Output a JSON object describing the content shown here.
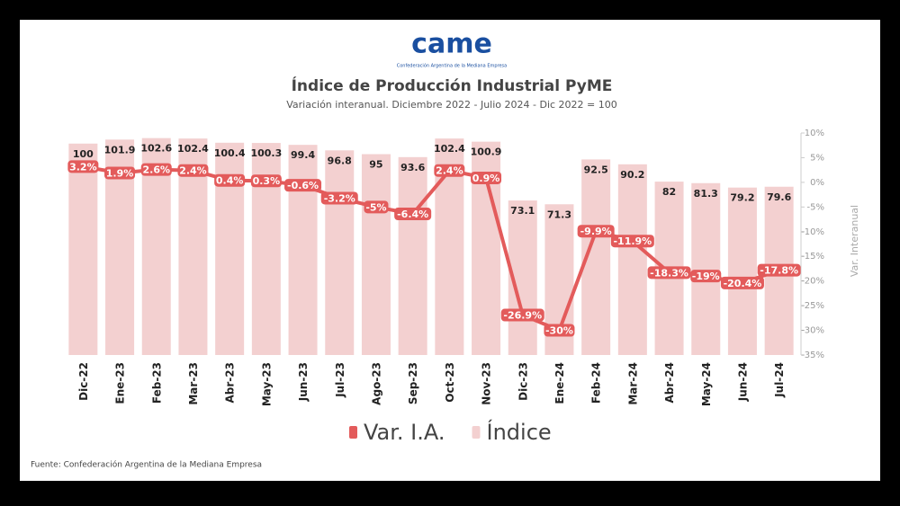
{
  "logo": "came",
  "logo_caption": "Confederación Argentina de la Mediana Empresa",
  "source": "Fuente: Confederación Argentina de la Mediana Empresa",
  "chart_data": {
    "type": "bar-line",
    "title": "Índice de Producción Industrial PyME",
    "subtitle": "Variación interanual. Diciembre 2022 - Julio 2024 - Dic 2022 = 100",
    "y2_label": "Var. Interanual",
    "categories": [
      "Dic-22",
      "Ene-23",
      "Feb-23",
      "Mar-23",
      "Abr-23",
      "May-23",
      "Jun-23",
      "Jul-23",
      "Ago-23",
      "Sep-23",
      "Oct-23",
      "Nov-23",
      "Dic-23",
      "Ene-24",
      "Feb-24",
      "Mar-24",
      "Abr-24",
      "May-24",
      "Jun-24",
      "Jul-24"
    ],
    "ylim": [
      0,
      105
    ],
    "y2lim": [
      -35,
      10
    ],
    "y2ticks": [
      {
        "value": 10,
        "label": "10%"
      },
      {
        "value": 5,
        "label": "5%"
      },
      {
        "value": 0,
        "label": "0%"
      },
      {
        "value": -5,
        "label": "-5%"
      },
      {
        "value": -10,
        "label": "-10%"
      },
      {
        "value": -15,
        "label": "-15%"
      },
      {
        "value": -20,
        "label": "-20%"
      },
      {
        "value": -25,
        "label": "-25%"
      },
      {
        "value": -30,
        "label": "-30%"
      },
      {
        "value": -35,
        "label": "-35%"
      }
    ],
    "legend": "bottom",
    "series": [
      {
        "name": "Var. I.A.",
        "type": "line",
        "axis": "y2",
        "color": "#e35b5b",
        "values": [
          3.2,
          1.9,
          2.6,
          2.4,
          0.4,
          0.3,
          -0.6,
          -3.2,
          -5,
          -6.4,
          2.4,
          0.9,
          -26.9,
          -30,
          -9.9,
          -11.9,
          -18.3,
          -19,
          -20.4,
          -17.8
        ],
        "value_labels": [
          "3.2%",
          "1.9%",
          "2.6%",
          "2.4%",
          "0.4%",
          "0.3%",
          "-0.6%",
          "-3.2%",
          "-5%",
          "-6.4%",
          "2.4%",
          "0.9%",
          "-26.9%",
          "-30%",
          "-9.9%",
          "-11.9%",
          "-18.3%",
          "-19%",
          "-20.4%",
          "-17.8%"
        ]
      },
      {
        "name": "Índice",
        "type": "bar",
        "color": "#f3d0d0",
        "values": [
          100,
          101.9,
          102.6,
          102.4,
          100.4,
          100.3,
          99.4,
          96.8,
          95,
          93.6,
          102.4,
          100.9,
          73.1,
          71.3,
          92.5,
          90.2,
          82,
          81.3,
          79.2,
          79.6
        ]
      }
    ]
  }
}
